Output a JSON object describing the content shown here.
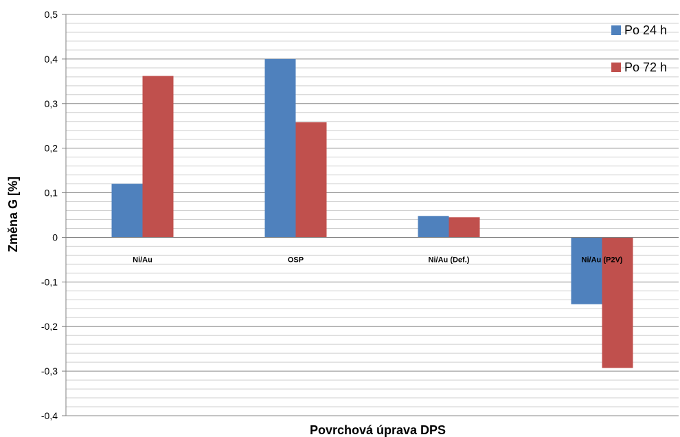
{
  "chart_data": {
    "type": "bar",
    "categories": [
      "Ni/Au",
      "OSP",
      "Ni/Au (Def.)",
      "Ni/Au (P2V)"
    ],
    "series": [
      {
        "name": "Po 24 h",
        "values": [
          0.12,
          0.4,
          0.048,
          -0.15
        ],
        "color": "#4f81bd"
      },
      {
        "name": "Po 72 h",
        "values": [
          0.362,
          0.258,
          0.045,
          -0.293
        ],
        "color": "#c0504d"
      }
    ],
    "title": "",
    "xlabel": "Povrchová úprava DPS",
    "ylabel": "Změna G [%]",
    "ylim": [
      -0.4,
      0.5
    ],
    "yticks": [
      0.5,
      0.4,
      0.3,
      0.2,
      0.1,
      0,
      -0.1,
      -0.2,
      -0.3,
      -0.4
    ],
    "ytick_labels": [
      "0,5",
      "0,4",
      "0,3",
      "0,2",
      "0,1",
      "0",
      "-0,1",
      "-0,2",
      "-0,3",
      "-0,4"
    ],
    "minor_grid_step": 0.02,
    "grid": true,
    "legend_position": "top-right"
  }
}
